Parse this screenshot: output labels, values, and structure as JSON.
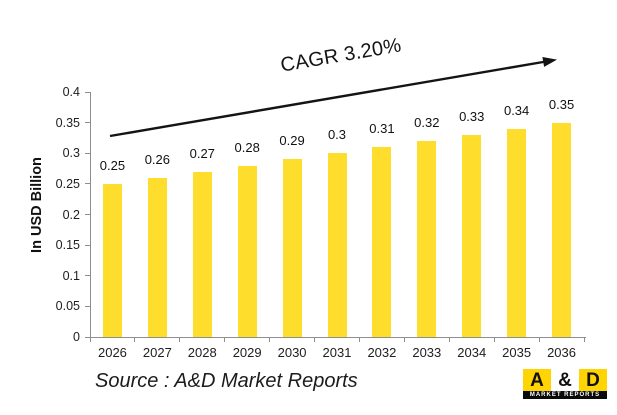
{
  "chart_data": {
    "type": "bar",
    "title": "",
    "categories": [
      "2026",
      "2027",
      "2028",
      "2029",
      "2030",
      "2031",
      "2032",
      "2033",
      "2034",
      "2035",
      "2036"
    ],
    "values": [
      0.25,
      0.26,
      0.27,
      0.28,
      0.29,
      0.3,
      0.31,
      0.32,
      0.33,
      0.34,
      0.35
    ],
    "value_labels": [
      "0.25",
      "0.26",
      "0.27",
      "0.28",
      "0.29",
      "0.3",
      "0.31",
      "0.32",
      "0.33",
      "0.34",
      "0.35"
    ],
    "xlabel": "",
    "ylabel": "In USD Billion",
    "ylim": [
      0,
      0.4
    ],
    "ytick_interval": 0.05,
    "ytick_labels": [
      "0",
      "0.05",
      "0.1",
      "0.15",
      "0.2",
      "0.25",
      "0.3",
      "0.35",
      "0.4"
    ],
    "grid": false,
    "legend_position": "none",
    "bar_color": "#FFDD2D",
    "annotation": {
      "text": "CAGR 3.20%",
      "style": "trend-arrow-up"
    }
  },
  "footer": {
    "source_text": "Source : A&D Market Reports"
  },
  "logo": {
    "letters": [
      "A",
      "&",
      "D"
    ],
    "tagline": "MARKET REPORTS",
    "yellow": "#FFD403"
  },
  "colors": {
    "bar": "#FFDD2D",
    "axis": "#8e8e8e",
    "text": "#1a1a1a"
  }
}
